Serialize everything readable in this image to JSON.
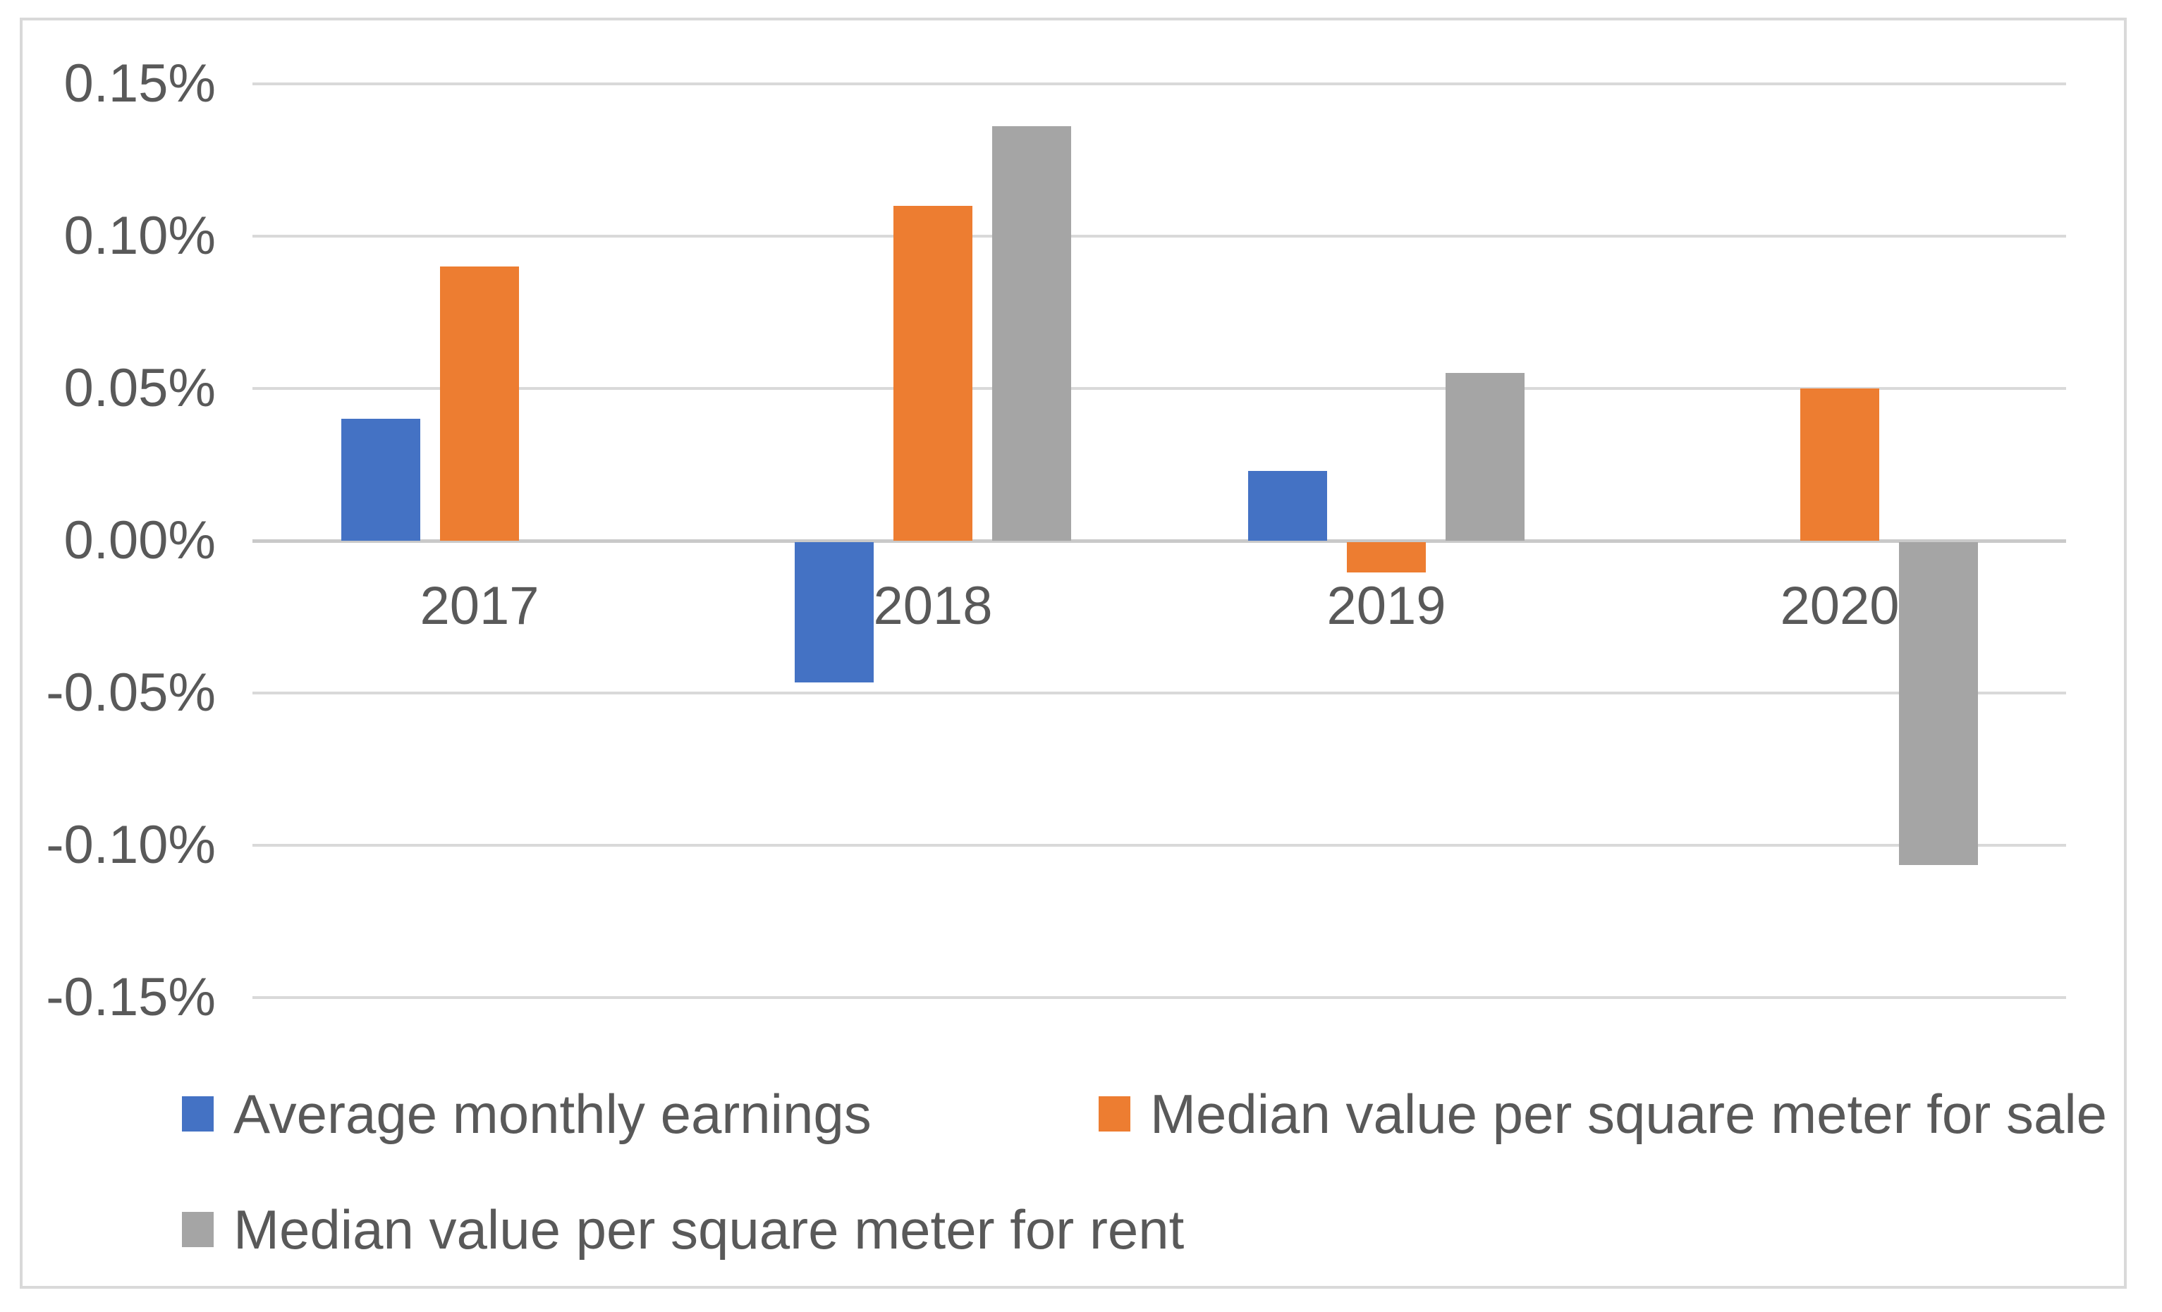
{
  "chart_data": {
    "type": "bar",
    "title": "",
    "categories": [
      "2017",
      "2018",
      "2019",
      "2020"
    ],
    "series": [
      {
        "name": "Average monthly earnings",
        "color": "#4472C4",
        "values": [
          0.04,
          -0.046,
          0.023,
          0
        ]
      },
      {
        "name": "Median value per square meter for sale",
        "color": "#ED7D31",
        "values": [
          0.09,
          0.11,
          -0.01,
          0.05
        ]
      },
      {
        "name": "Median value per square meter for rent",
        "color": "#A5A5A5",
        "values": [
          0,
          0.136,
          0.055,
          -0.106
        ]
      }
    ],
    "y_axis": {
      "unit": "%",
      "tick_labels": [
        "0.15%",
        "0.10%",
        "0.05%",
        "0.00%",
        "-0.05%",
        "-0.10%",
        "-0.15%"
      ],
      "tick_values": [
        0.15,
        0.1,
        0.05,
        0.0,
        -0.05,
        -0.1,
        -0.15
      ]
    },
    "ylim": [
      -0.175,
      0.175
    ],
    "grid": true,
    "legend_position": "bottom"
  },
  "colors": {
    "background": "#FFFFFF",
    "border": "#D9D9D9",
    "gridline": "#D9D9D9",
    "zero_axis": "#C9C9C9",
    "text": "#595959"
  }
}
